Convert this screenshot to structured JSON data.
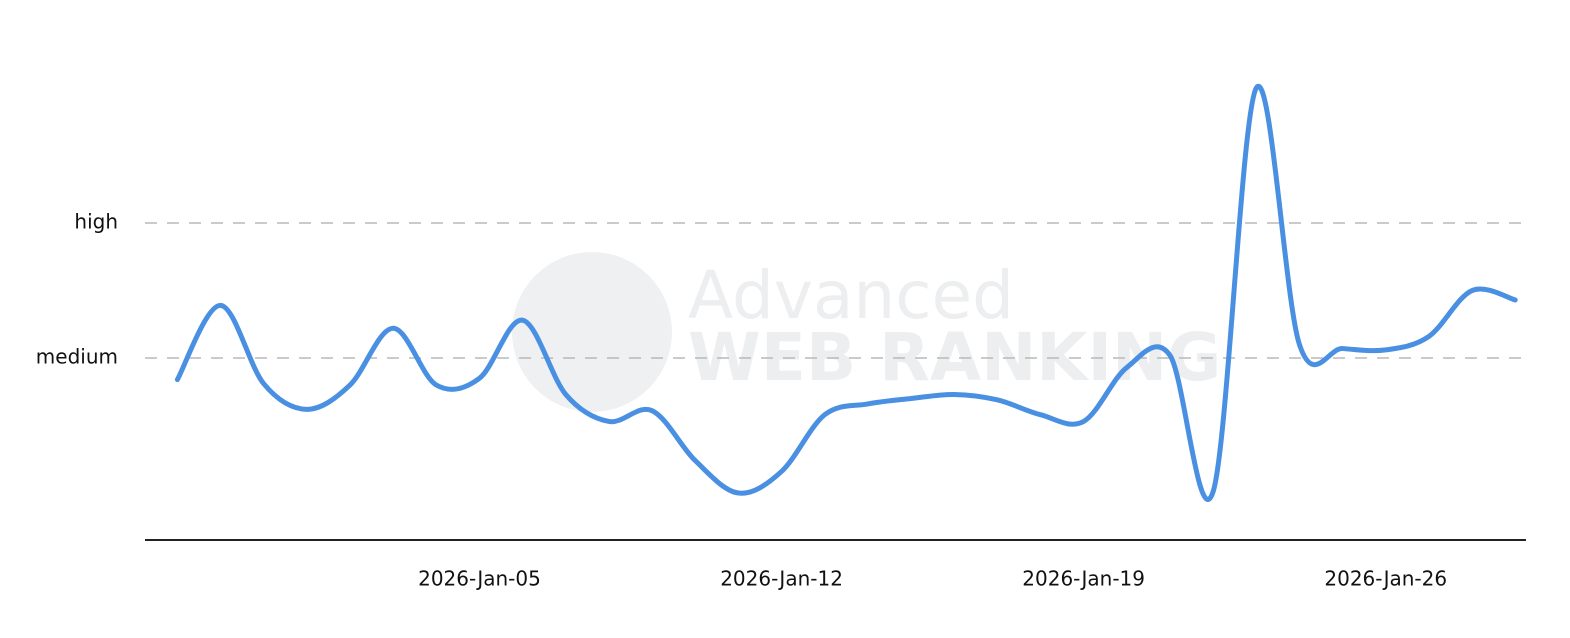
{
  "chart_data": {
    "type": "line",
    "watermark": [
      "Advanced",
      "WEB RANKING"
    ],
    "x": [
      "2025-12-29",
      "2025-12-30",
      "2025-12-31",
      "2026-01-01",
      "2026-01-02",
      "2026-01-03",
      "2026-01-04",
      "2026-01-05",
      "2026-01-06",
      "2026-01-07",
      "2026-01-08",
      "2026-01-09",
      "2026-01-10",
      "2026-01-11",
      "2026-01-12",
      "2026-01-13",
      "2026-01-14",
      "2026-01-15",
      "2026-01-16",
      "2026-01-17",
      "2026-01-18",
      "2026-01-19",
      "2026-01-20",
      "2026-01-21",
      "2026-01-22",
      "2026-01-23",
      "2026-01-24",
      "2026-01-25",
      "2026-01-26",
      "2026-01-27",
      "2026-01-28",
      "2026-01-29"
    ],
    "series": [
      {
        "color": "#4a90e2",
        "values": [
          0.84,
          1.39,
          0.81,
          0.62,
          0.8,
          1.22,
          0.8,
          0.85,
          1.28,
          0.73,
          0.53,
          0.61,
          0.24,
          0.0,
          0.16,
          0.58,
          0.66,
          0.7,
          0.73,
          0.69,
          0.58,
          0.53,
          0.93,
          1.02,
          0.01,
          3.0,
          1.1,
          1.07,
          1.06,
          1.16,
          1.5,
          1.43
        ]
      }
    ],
    "xlim": [
      "2025-12-28T06:00Z",
      "2026-01-29T06:00Z"
    ],
    "xticks": [
      {
        "value": "2026-01-05",
        "label": "2026-Jan-05"
      },
      {
        "value": "2026-01-12",
        "label": "2026-Jan-12"
      },
      {
        "value": "2026-01-19",
        "label": "2026-Jan-19"
      },
      {
        "value": "2026-01-26",
        "label": "2026-Jan-26"
      }
    ],
    "ylim": [
      -0.348,
      3.2
    ],
    "yticks": [
      {
        "value": 1,
        "label": "medium"
      },
      {
        "value": 2,
        "label": "high"
      }
    ],
    "grid": true
  }
}
